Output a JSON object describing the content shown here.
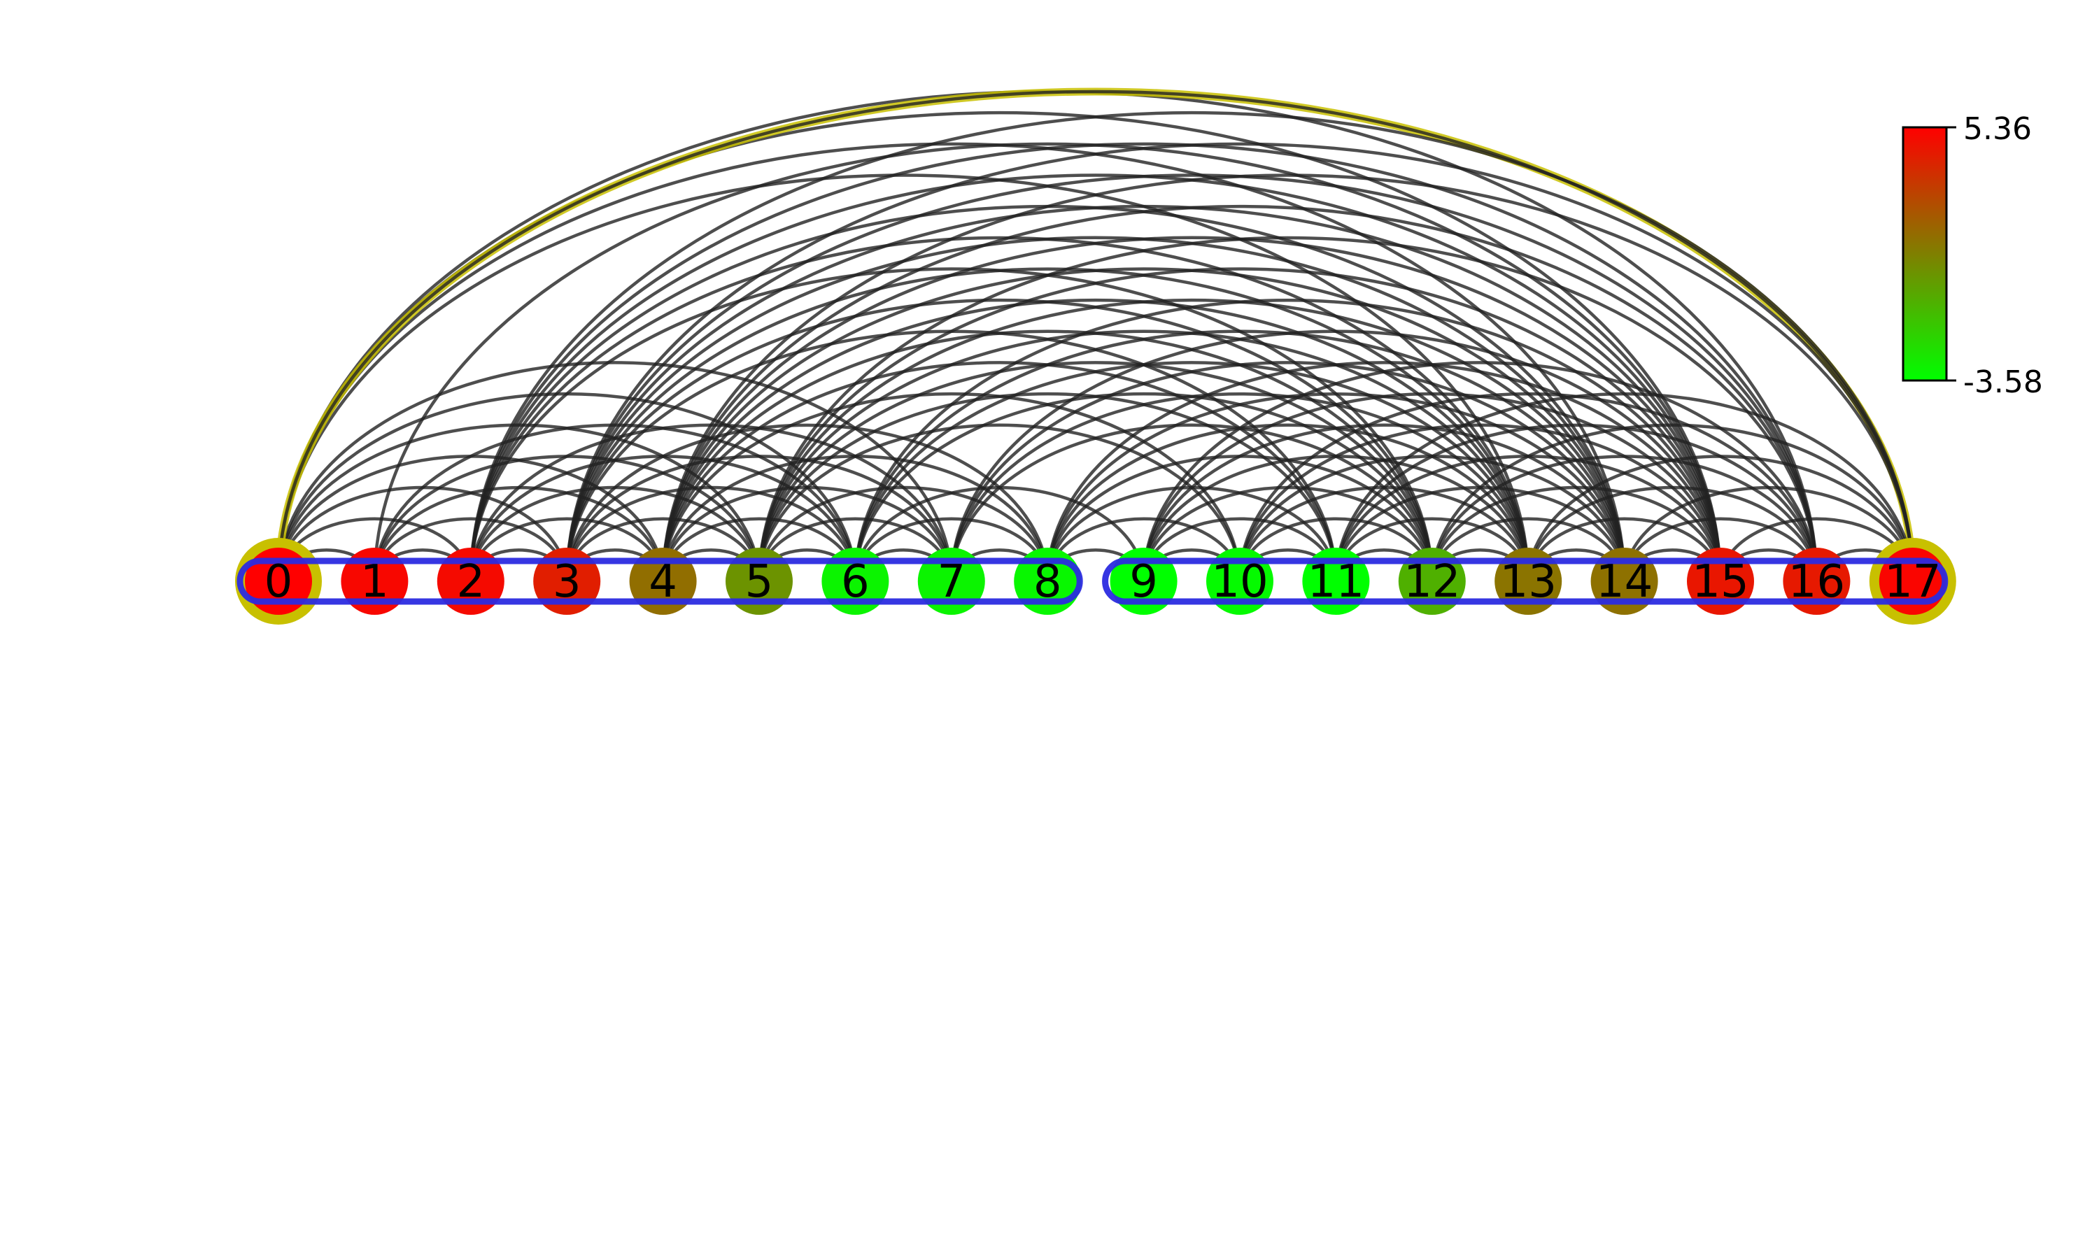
{
  "colorbar": {
    "max_label": "5.36",
    "min_label": "-3.58",
    "max_color": "#ff0000",
    "min_color": "#00ff00"
  },
  "nodes": [
    {
      "label": "0",
      "value": 5.36
    },
    {
      "label": "1",
      "value": 5.1
    },
    {
      "label": "2",
      "value": 5.0
    },
    {
      "label": "3",
      "value": 4.3
    },
    {
      "label": "4",
      "value": 1.5
    },
    {
      "label": "5",
      "value": 0.2
    },
    {
      "label": "6",
      "value": -3.2
    },
    {
      "label": "7",
      "value": -3.2
    },
    {
      "label": "8",
      "value": -3.3
    },
    {
      "label": "9",
      "value": -3.58
    },
    {
      "label": "10",
      "value": -3.4
    },
    {
      "label": "11",
      "value": -3.58
    },
    {
      "label": "12",
      "value": -0.8
    },
    {
      "label": "13",
      "value": 1.3
    },
    {
      "label": "14",
      "value": 1.4
    },
    {
      "label": "15",
      "value": 4.6
    },
    {
      "label": "16",
      "value": 4.5
    },
    {
      "label": "17",
      "value": 5.2
    }
  ],
  "highlighted_nodes": [
    0,
    17
  ],
  "highlight_color": "#c8c000",
  "groups": [
    {
      "members": [
        0,
        8
      ],
      "color": "#2b2be0"
    },
    {
      "members": [
        9,
        17
      ],
      "color": "#2b2be0"
    }
  ],
  "edge_color": "#222222",
  "highlighted_edges": [
    [
      0,
      17
    ]
  ],
  "edges": [
    [
      0,
      1
    ],
    [
      0,
      2
    ],
    [
      0,
      3
    ],
    [
      0,
      4
    ],
    [
      0,
      5
    ],
    [
      0,
      6
    ],
    [
      0,
      7
    ],
    [
      0,
      13
    ],
    [
      0,
      14
    ],
    [
      0,
      15
    ],
    [
      0,
      16
    ],
    [
      0,
      17
    ],
    [
      1,
      2
    ],
    [
      1,
      3
    ],
    [
      1,
      4
    ],
    [
      1,
      5
    ],
    [
      1,
      6
    ],
    [
      1,
      15
    ],
    [
      2,
      3
    ],
    [
      2,
      4
    ],
    [
      2,
      5
    ],
    [
      2,
      6
    ],
    [
      2,
      7
    ],
    [
      2,
      12
    ],
    [
      2,
      13
    ],
    [
      2,
      14
    ],
    [
      2,
      15
    ],
    [
      2,
      16
    ],
    [
      2,
      17
    ],
    [
      3,
      4
    ],
    [
      3,
      5
    ],
    [
      3,
      6
    ],
    [
      3,
      7
    ],
    [
      3,
      8
    ],
    [
      3,
      11
    ],
    [
      3,
      12
    ],
    [
      3,
      13
    ],
    [
      3,
      14
    ],
    [
      3,
      15
    ],
    [
      3,
      16
    ],
    [
      3,
      17
    ],
    [
      4,
      5
    ],
    [
      4,
      6
    ],
    [
      4,
      7
    ],
    [
      4,
      8
    ],
    [
      4,
      10
    ],
    [
      4,
      11
    ],
    [
      4,
      12
    ],
    [
      4,
      13
    ],
    [
      4,
      14
    ],
    [
      4,
      15
    ],
    [
      4,
      16
    ],
    [
      4,
      17
    ],
    [
      5,
      6
    ],
    [
      5,
      7
    ],
    [
      5,
      8
    ],
    [
      5,
      10
    ],
    [
      5,
      11
    ],
    [
      5,
      12
    ],
    [
      5,
      13
    ],
    [
      5,
      14
    ],
    [
      5,
      15
    ],
    [
      5,
      16
    ],
    [
      6,
      7
    ],
    [
      6,
      8
    ],
    [
      6,
      9
    ],
    [
      6,
      12
    ],
    [
      6,
      13
    ],
    [
      6,
      14
    ],
    [
      6,
      15
    ],
    [
      7,
      8
    ],
    [
      7,
      12
    ],
    [
      7,
      13
    ],
    [
      7,
      14
    ],
    [
      7,
      15
    ],
    [
      8,
      9
    ],
    [
      8,
      10
    ],
    [
      8,
      11
    ],
    [
      8,
      12
    ],
    [
      8,
      13
    ],
    [
      8,
      14
    ],
    [
      8,
      15
    ],
    [
      9,
      10
    ],
    [
      9,
      11
    ],
    [
      9,
      12
    ],
    [
      9,
      13
    ],
    [
      9,
      14
    ],
    [
      9,
      15
    ],
    [
      9,
      16
    ],
    [
      10,
      11
    ],
    [
      10,
      12
    ],
    [
      10,
      13
    ],
    [
      10,
      14
    ],
    [
      10,
      15
    ],
    [
      10,
      16
    ],
    [
      11,
      12
    ],
    [
      11,
      13
    ],
    [
      11,
      14
    ],
    [
      11,
      15
    ],
    [
      11,
      16
    ],
    [
      11,
      17
    ],
    [
      12,
      13
    ],
    [
      12,
      14
    ],
    [
      12,
      15
    ],
    [
      12,
      16
    ],
    [
      12,
      17
    ],
    [
      13,
      14
    ],
    [
      13,
      15
    ],
    [
      13,
      16
    ],
    [
      13,
      17
    ],
    [
      14,
      15
    ],
    [
      14,
      16
    ],
    [
      14,
      17
    ],
    [
      15,
      16
    ],
    [
      15,
      17
    ],
    [
      16,
      17
    ]
  ]
}
